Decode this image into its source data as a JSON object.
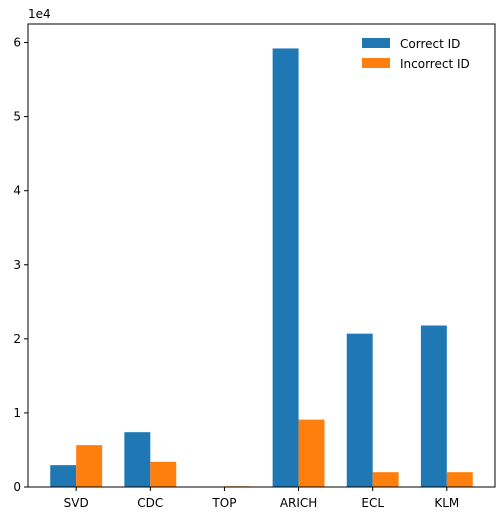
{
  "chart_data": {
    "type": "bar",
    "categories": [
      "SVD",
      "CDC",
      "TOP",
      "ARICH",
      "ECL",
      "KLM"
    ],
    "series": [
      {
        "name": "Correct ID",
        "color": "#1f77b4",
        "values": [
          2950,
          7400,
          0,
          59200,
          20700,
          21800
        ]
      },
      {
        "name": "Incorrect ID",
        "color": "#ff7f0e",
        "values": [
          5650,
          3400,
          100,
          9100,
          2000,
          2000
        ]
      }
    ],
    "ylim": [
      0,
      62500
    ],
    "yticks": [
      0,
      10000,
      20000,
      30000,
      40000,
      50000,
      60000
    ],
    "ytick_labels": [
      "0",
      "1",
      "2",
      "3",
      "4",
      "5",
      "6"
    ],
    "y_offset_label": "1e4",
    "xlabel": "",
    "ylabel": "",
    "title": "",
    "legend_position": "top-right",
    "grid": false
  }
}
